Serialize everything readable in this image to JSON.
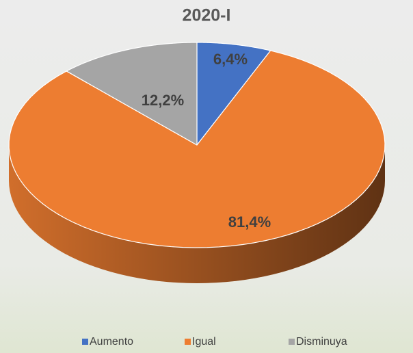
{
  "chart_data": {
    "type": "pie",
    "title": "2020-I",
    "categories": [
      "Aumento",
      "Igual",
      "Disminuya"
    ],
    "values": [
      6.4,
      81.4,
      12.2
    ],
    "value_labels": [
      "6,4%",
      "81,4%",
      "12,2%"
    ],
    "colors": [
      "#4472c4",
      "#ed7d31",
      "#a5a5a5"
    ],
    "legend": "bottom"
  }
}
